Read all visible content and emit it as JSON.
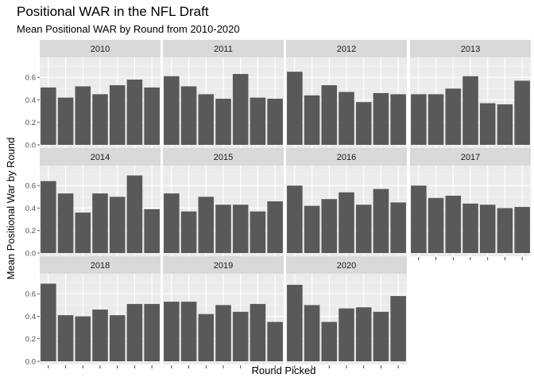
{
  "chart_data": {
    "type": "bar",
    "title": "Positional WAR in the NFL Draft",
    "subtitle": "Mean Positional WAR by Round from 2010-2020",
    "xlabel": "Round Picked",
    "ylabel": "Mean Positional War by Round",
    "ylim": [
      0,
      0.75
    ],
    "yticks": [
      0.0,
      0.2,
      0.4,
      0.6
    ],
    "ytick_labels": [
      "0.0",
      "0.2",
      "0.4",
      "0.6"
    ],
    "rounds_per_panel": 7,
    "grid": true,
    "background": "#ebebeb",
    "strip_color": "#d9d9d9",
    "bar_color": "#595959",
    "facets": [
      {
        "label": "2010",
        "values": [
          0.51,
          0.42,
          0.52,
          0.45,
          0.53,
          0.58,
          0.51
        ]
      },
      {
        "label": "2011",
        "values": [
          0.61,
          0.52,
          0.45,
          0.41,
          0.63,
          0.42,
          0.41
        ]
      },
      {
        "label": "2012",
        "values": [
          0.65,
          0.44,
          0.53,
          0.47,
          0.38,
          0.46,
          0.45
        ]
      },
      {
        "label": "2013",
        "values": [
          0.45,
          0.45,
          0.5,
          0.61,
          0.37,
          0.36,
          0.57
        ]
      },
      {
        "label": "2014",
        "values": [
          0.64,
          0.53,
          0.36,
          0.53,
          0.5,
          0.69,
          0.39
        ]
      },
      {
        "label": "2015",
        "values": [
          0.53,
          0.37,
          0.5,
          0.43,
          0.43,
          0.37,
          0.46
        ]
      },
      {
        "label": "2016",
        "values": [
          0.6,
          0.42,
          0.48,
          0.54,
          0.43,
          0.57,
          0.45
        ]
      },
      {
        "label": "2017",
        "values": [
          0.6,
          0.49,
          0.51,
          0.44,
          0.43,
          0.4,
          0.41
        ]
      },
      {
        "label": "2018",
        "values": [
          0.69,
          0.41,
          0.4,
          0.46,
          0.41,
          0.51,
          0.51
        ]
      },
      {
        "label": "2019",
        "values": [
          0.53,
          0.53,
          0.42,
          0.5,
          0.44,
          0.51,
          0.35
        ]
      },
      {
        "label": "2020",
        "values": [
          0.68,
          0.5,
          0.35,
          0.47,
          0.48,
          0.44,
          0.58
        ]
      }
    ]
  }
}
